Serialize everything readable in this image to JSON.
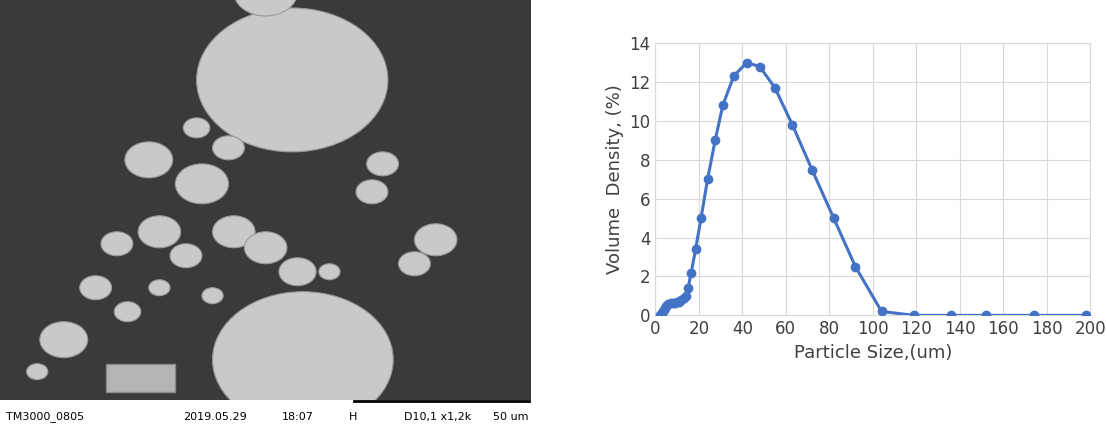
{
  "micrograph": {
    "caption": [
      "TM3000_0805",
      "2019.05.29",
      "18:07",
      "H",
      "D10,1 x1,2k",
      "50 um"
    ]
  },
  "chart_data": {
    "type": "line",
    "x_label": "Particle Size,(um)",
    "y_label": "Volume  Density, (%)",
    "x": [
      2,
      2.5,
      3,
      3.5,
      4,
      4.5,
      5,
      6,
      7,
      8,
      9,
      10,
      11,
      12,
      13,
      14,
      15,
      16.5,
      18.5,
      21,
      24,
      27.5,
      31,
      36,
      42,
      48,
      55,
      63,
      72,
      82,
      92,
      104,
      119,
      136,
      152,
      174,
      198
    ],
    "values": [
      0,
      0.05,
      0.1,
      0.2,
      0.3,
      0.4,
      0.5,
      0.6,
      0.65,
      0.65,
      0.65,
      0.7,
      0.7,
      0.8,
      0.9,
      1.0,
      1.4,
      2.2,
      3.4,
      5.0,
      7.0,
      9.0,
      10.8,
      12.3,
      13.0,
      12.8,
      11.7,
      9.8,
      7.5,
      5.0,
      2.5,
      0.2,
      0,
      0,
      0,
      0,
      0
    ],
    "color": "#4472c4",
    "marker": "circle",
    "line_style": "solid",
    "xlim": [
      0,
      200
    ],
    "xticks": [
      0,
      20,
      40,
      60,
      80,
      100,
      120,
      140,
      160,
      180,
      200
    ],
    "ylim": [
      0,
      14
    ],
    "yticks": [
      0,
      2,
      4,
      6,
      8,
      10,
      12,
      14
    ],
    "grid": true
  }
}
